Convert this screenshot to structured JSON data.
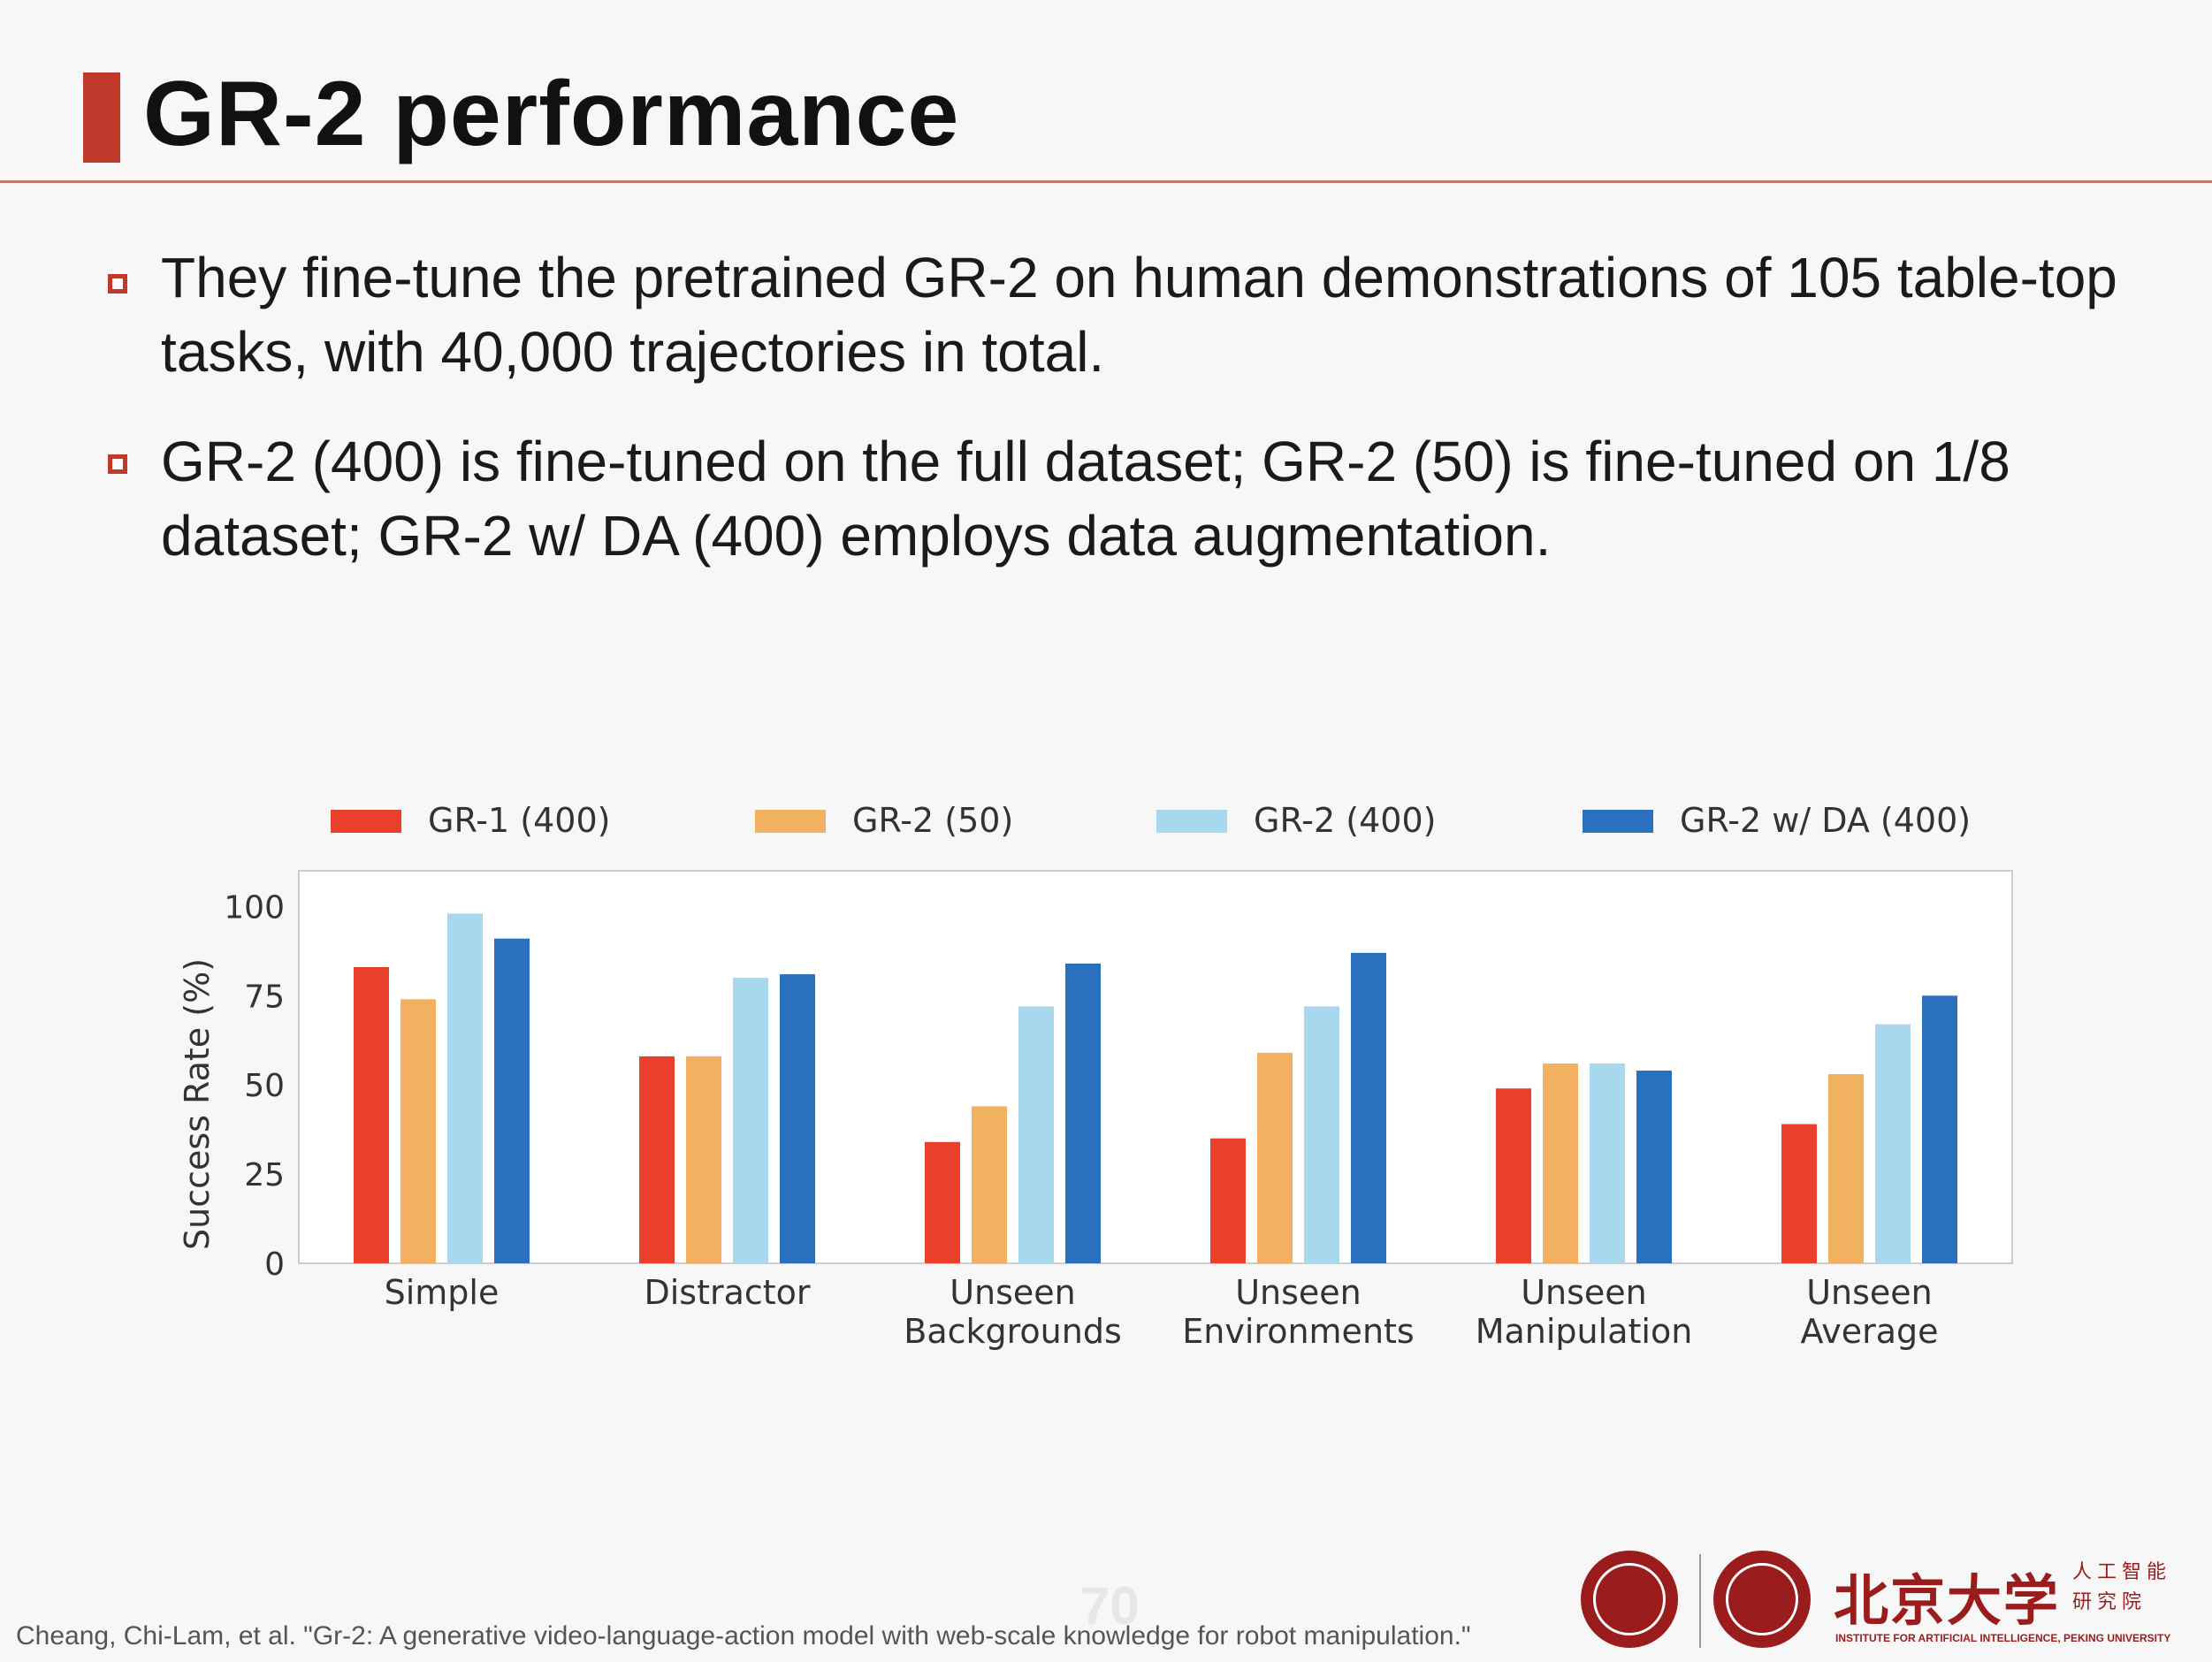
{
  "slide": {
    "title": "GR-2 performance",
    "bullets": [
      "They fine-tune the pretrained GR-2 on human demonstrations of 105 table-top tasks, with 40,000 trajectories in total.",
      "GR-2 (400) is fine-tuned on the full dataset; GR-2 (50) is fine-tuned on 1/8 dataset; GR-2 w/ DA (400) employs data augmentation."
    ],
    "citation": "Cheang, Chi-Lam, et al. \"Gr-2: A generative video-language-action model with web-scale knowledge for robot manipulation.\"",
    "page_number": "70",
    "logo": {
      "university_cn": "北京大学",
      "institute_cn_line1": "人工智能",
      "institute_cn_line2": "研究院",
      "institute_en": "INSTITUTE FOR ARTIFICIAL INTELLIGENCE, PEKING UNIVERSITY"
    }
  },
  "chart_data": {
    "type": "bar",
    "title": "",
    "xlabel": "",
    "ylabel": "Success Rate (%)",
    "ylim": [
      0,
      110
    ],
    "yticks": [
      0,
      25,
      50,
      75,
      100
    ],
    "grid": false,
    "legend_position": "top",
    "categories": [
      [
        "Simple"
      ],
      [
        "Distractor"
      ],
      [
        "Unseen",
        "Backgrounds"
      ],
      [
        "Unseen",
        "Environments"
      ],
      [
        "Unseen",
        "Manipulation"
      ],
      [
        "Unseen",
        "Average"
      ]
    ],
    "series": [
      {
        "name": "GR-1 (400)",
        "color": "#e8402a",
        "values": [
          83,
          58,
          34,
          35,
          49,
          39
        ]
      },
      {
        "name": "GR-2 (50)",
        "color": "#f2b060",
        "values": [
          74,
          58,
          44,
          59,
          56,
          53
        ]
      },
      {
        "name": "GR-2 (400)",
        "color": "#a8d8ee",
        "values": [
          98,
          80,
          72,
          72,
          56,
          67
        ]
      },
      {
        "name": "GR-2 w/ DA (400)",
        "color": "#2b6fbf",
        "values": [
          91,
          81,
          84,
          87,
          54,
          75
        ]
      }
    ]
  }
}
